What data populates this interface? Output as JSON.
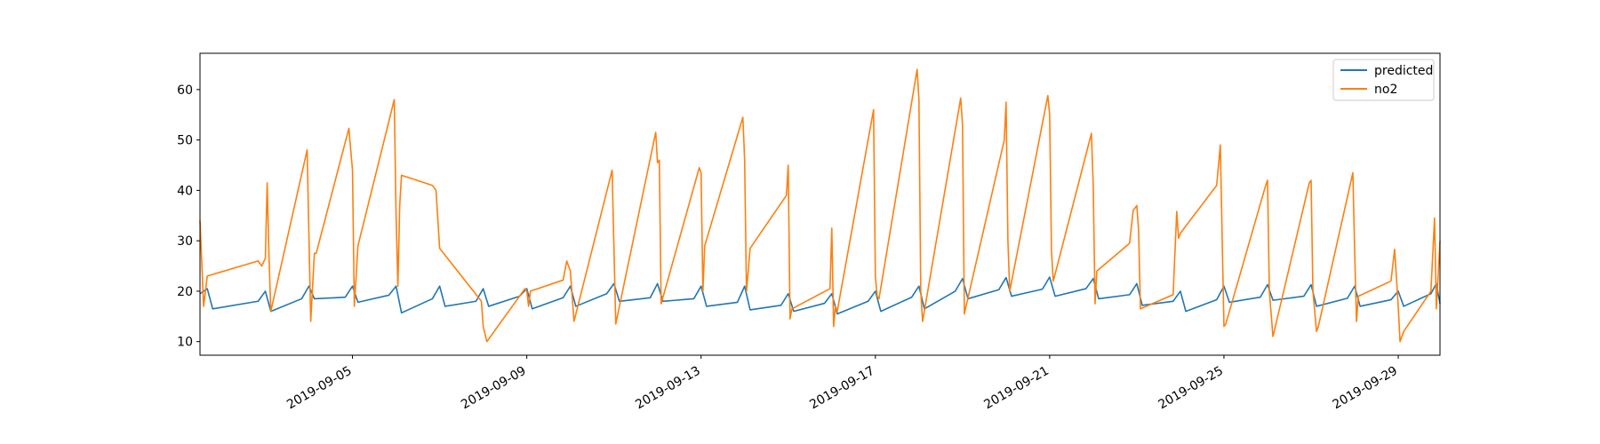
{
  "chart_data": {
    "type": "line",
    "title": "",
    "xlabel": "",
    "ylabel": "",
    "xlim": [
      "2019-09-01T12:00",
      "2019-09-29T23:00"
    ],
    "ylim": [
      7.3,
      67.2
    ],
    "legend_position": "top-right",
    "grid": false,
    "x_ticks": [
      "2019-09-05",
      "2019-09-09",
      "2019-09-13",
      "2019-09-17",
      "2019-09-21",
      "2019-09-25",
      "2019-09-29"
    ],
    "y_ticks": [
      10,
      20,
      30,
      40,
      50,
      60
    ],
    "series": [
      {
        "name": "predicted",
        "color": "#1f77b4",
        "points": [
          [
            "2019-09-01T12:00",
            19.5
          ],
          [
            "2019-09-01T16:00",
            20.5
          ],
          [
            "2019-09-01T19:00",
            16.5
          ],
          [
            "2019-09-02T20:00",
            18.0
          ],
          [
            "2019-09-03T00:00",
            20.0
          ],
          [
            "2019-09-03T03:00",
            16.0
          ],
          [
            "2019-09-03T20:00",
            18.5
          ],
          [
            "2019-09-04T00:00",
            21.0
          ],
          [
            "2019-09-04T03:00",
            18.5
          ],
          [
            "2019-09-04T20:00",
            18.8
          ],
          [
            "2019-09-05T00:00",
            21.0
          ],
          [
            "2019-09-05T03:00",
            17.8
          ],
          [
            "2019-09-05T20:00",
            19.2
          ],
          [
            "2019-09-06T00:00",
            21.0
          ],
          [
            "2019-09-06T03:00",
            15.7
          ],
          [
            "2019-09-06T20:00",
            18.5
          ],
          [
            "2019-09-07T00:00",
            21.0
          ],
          [
            "2019-09-07T03:00",
            17.0
          ],
          [
            "2019-09-07T20:00",
            18.0
          ],
          [
            "2019-09-08T00:00",
            20.5
          ],
          [
            "2019-09-08T03:00",
            17.0
          ],
          [
            "2019-09-08T20:00",
            19.0
          ],
          [
            "2019-09-09T00:00",
            20.5
          ],
          [
            "2019-09-09T03:00",
            16.5
          ],
          [
            "2019-09-09T20:00",
            18.7
          ],
          [
            "2019-09-10T00:00",
            21.0
          ],
          [
            "2019-09-10T03:00",
            17.0
          ],
          [
            "2019-09-10T20:00",
            19.5
          ],
          [
            "2019-09-11T00:00",
            21.5
          ],
          [
            "2019-09-11T03:00",
            18.0
          ],
          [
            "2019-09-11T20:00",
            18.7
          ],
          [
            "2019-09-12T00:00",
            21.5
          ],
          [
            "2019-09-12T03:00",
            18.0
          ],
          [
            "2019-09-12T20:00",
            18.5
          ],
          [
            "2019-09-13T00:00",
            21.0
          ],
          [
            "2019-09-13T03:00",
            17.0
          ],
          [
            "2019-09-13T20:00",
            17.8
          ],
          [
            "2019-09-14T00:00",
            21.0
          ],
          [
            "2019-09-14T03:00",
            16.3
          ],
          [
            "2019-09-14T20:00",
            17.2
          ],
          [
            "2019-09-15T00:00",
            19.5
          ],
          [
            "2019-09-15T03:00",
            16.0
          ],
          [
            "2019-09-15T20:00",
            17.6
          ],
          [
            "2019-09-16T00:00",
            19.5
          ],
          [
            "2019-09-16T03:00",
            15.5
          ],
          [
            "2019-09-16T20:00",
            18.0
          ],
          [
            "2019-09-17T00:00",
            20.0
          ],
          [
            "2019-09-17T03:00",
            16.0
          ],
          [
            "2019-09-17T20:00",
            18.8
          ],
          [
            "2019-09-18T00:00",
            21.0
          ],
          [
            "2019-09-18T03:00",
            16.5
          ],
          [
            "2019-09-18T20:00",
            20.0
          ],
          [
            "2019-09-19T00:00",
            22.5
          ],
          [
            "2019-09-19T03:00",
            18.5
          ],
          [
            "2019-09-19T20:00",
            20.3
          ],
          [
            "2019-09-20T00:00",
            22.7
          ],
          [
            "2019-09-20T03:00",
            19.0
          ],
          [
            "2019-09-20T20:00",
            20.4
          ],
          [
            "2019-09-21T00:00",
            22.8
          ],
          [
            "2019-09-21T03:00",
            19.0
          ],
          [
            "2019-09-21T20:00",
            20.5
          ],
          [
            "2019-09-22T00:00",
            22.5
          ],
          [
            "2019-09-22T03:00",
            18.5
          ],
          [
            "2019-09-22T20:00",
            19.3
          ],
          [
            "2019-09-23T00:00",
            21.5
          ],
          [
            "2019-09-23T03:00",
            17.2
          ],
          [
            "2019-09-23T20:00",
            18.0
          ],
          [
            "2019-09-24T00:00",
            20.0
          ],
          [
            "2019-09-24T03:00",
            16.0
          ],
          [
            "2019-09-24T20:00",
            18.3
          ],
          [
            "2019-09-25T00:00",
            21.0
          ],
          [
            "2019-09-25T03:00",
            17.8
          ],
          [
            "2019-09-25T20:00",
            18.8
          ],
          [
            "2019-09-26T00:00",
            21.3
          ],
          [
            "2019-09-26T03:00",
            18.2
          ],
          [
            "2019-09-26T20:00",
            19.0
          ],
          [
            "2019-09-27T00:00",
            21.3
          ],
          [
            "2019-09-27T03:00",
            17.0
          ],
          [
            "2019-09-27T20:00",
            18.6
          ],
          [
            "2019-09-28T00:00",
            21.0
          ],
          [
            "2019-09-28T03:00",
            17.0
          ],
          [
            "2019-09-28T20:00",
            18.3
          ],
          [
            "2019-09-29T00:00",
            20.0
          ],
          [
            "2019-09-29T03:00",
            17.0
          ],
          [
            "2019-09-29T18:00",
            19.5
          ],
          [
            "2019-09-29T21:00",
            21.5
          ],
          [
            "2019-09-29T23:00",
            17.5
          ]
        ]
      },
      {
        "name": "no2",
        "color": "#ff7f0e",
        "points": [
          [
            "2019-09-01T12:00",
            34.0
          ],
          [
            "2019-09-01T14:00",
            17.0
          ],
          [
            "2019-09-01T16:00",
            23.0
          ],
          [
            "2019-09-02T20:00",
            26.0
          ],
          [
            "2019-09-02T22:00",
            25.0
          ],
          [
            "2019-09-03T00:00",
            26.5
          ],
          [
            "2019-09-03T01:00",
            41.5
          ],
          [
            "2019-09-03T02:00",
            27.0
          ],
          [
            "2019-09-03T03:00",
            16.0
          ],
          [
            "2019-09-03T23:00",
            48.0
          ],
          [
            "2019-09-04T01:00",
            14.0
          ],
          [
            "2019-09-04T03:00",
            27.5
          ],
          [
            "2019-09-04T04:00",
            27.5
          ],
          [
            "2019-09-04T22:00",
            52.3
          ],
          [
            "2019-09-05T00:00",
            44.0
          ],
          [
            "2019-09-05T01:00",
            17.0
          ],
          [
            "2019-09-05T03:00",
            29.0
          ],
          [
            "2019-09-05T23:00",
            58.0
          ],
          [
            "2019-09-06T00:00",
            35.0
          ],
          [
            "2019-09-06T01:00",
            21.0
          ],
          [
            "2019-09-06T02:00",
            37.0
          ],
          [
            "2019-09-06T03:00",
            43.0
          ],
          [
            "2019-09-06T20:00",
            41.0
          ],
          [
            "2019-09-06T22:00",
            40.0
          ],
          [
            "2019-09-07T00:00",
            28.5
          ],
          [
            "2019-09-07T23:00",
            18.0
          ],
          [
            "2019-09-08T00:00",
            13.0
          ],
          [
            "2019-09-08T02:00",
            10.0
          ],
          [
            "2019-09-08T23:00",
            20.5
          ],
          [
            "2019-09-09T00:00",
            20.0
          ],
          [
            "2019-09-09T01:00",
            17.0
          ],
          [
            "2019-09-09T02:00",
            20.0
          ],
          [
            "2019-09-09T20:00",
            22.2
          ],
          [
            "2019-09-09T22:00",
            26.0
          ],
          [
            "2019-09-10T00:00",
            24.0
          ],
          [
            "2019-09-10T02:00",
            14.0
          ],
          [
            "2019-09-10T23:00",
            44.0
          ],
          [
            "2019-09-11T01:00",
            13.5
          ],
          [
            "2019-09-11T23:00",
            51.5
          ],
          [
            "2019-09-12T00:00",
            45.5
          ],
          [
            "2019-09-12T01:00",
            46.0
          ],
          [
            "2019-09-12T02:00",
            17.5
          ],
          [
            "2019-09-12T23:00",
            44.5
          ],
          [
            "2019-09-13T00:00",
            43.5
          ],
          [
            "2019-09-13T01:00",
            20.0
          ],
          [
            "2019-09-13T02:00",
            29.0
          ],
          [
            "2019-09-13T23:00",
            54.5
          ],
          [
            "2019-09-14T00:00",
            46.0
          ],
          [
            "2019-09-14T01:00",
            20.0
          ],
          [
            "2019-09-14T03:00",
            28.5
          ],
          [
            "2019-09-14T23:00",
            39.0
          ],
          [
            "2019-09-15T00:00",
            45.0
          ],
          [
            "2019-09-15T01:00",
            14.5
          ],
          [
            "2019-09-15T02:00",
            16.5
          ],
          [
            "2019-09-15T23:00",
            20.5
          ],
          [
            "2019-09-16T00:00",
            32.5
          ],
          [
            "2019-09-16T01:00",
            13.0
          ],
          [
            "2019-09-16T02:00",
            17.0
          ],
          [
            "2019-09-16T03:00",
            16.0
          ],
          [
            "2019-09-16T23:00",
            56.0
          ],
          [
            "2019-09-17T00:00",
            23.0
          ],
          [
            "2019-09-17T01:00",
            19.0
          ],
          [
            "2019-09-17T02:00",
            18.5
          ],
          [
            "2019-09-17T23:00",
            64.0
          ],
          [
            "2019-09-18T00:00",
            58.0
          ],
          [
            "2019-09-18T01:00",
            20.0
          ],
          [
            "2019-09-18T02:00",
            14.0
          ],
          [
            "2019-09-18T23:00",
            58.3
          ],
          [
            "2019-09-19T00:00",
            53.0
          ],
          [
            "2019-09-19T01:00",
            15.5
          ],
          [
            "2019-09-19T23:00",
            50.0
          ],
          [
            "2019-09-20T00:00",
            57.5
          ],
          [
            "2019-09-20T01:00",
            30.0
          ],
          [
            "2019-09-20T02:00",
            20.0
          ],
          [
            "2019-09-20T23:00",
            58.8
          ],
          [
            "2019-09-21T00:00",
            55.0
          ],
          [
            "2019-09-21T01:00",
            28.0
          ],
          [
            "2019-09-21T02:00",
            22.0
          ],
          [
            "2019-09-21T23:00",
            51.3
          ],
          [
            "2019-09-22T00:00",
            41.0
          ],
          [
            "2019-09-22T01:00",
            17.5
          ],
          [
            "2019-09-22T02:00",
            24.0
          ],
          [
            "2019-09-22T20:00",
            29.5
          ],
          [
            "2019-09-22T22:00",
            36.0
          ],
          [
            "2019-09-23T00:00",
            37.0
          ],
          [
            "2019-09-23T01:00",
            32.0
          ],
          [
            "2019-09-23T02:00",
            16.5
          ],
          [
            "2019-09-23T20:00",
            19.3
          ],
          [
            "2019-09-23T22:00",
            35.8
          ],
          [
            "2019-09-23T23:00",
            30.5
          ],
          [
            "2019-09-24T00:00",
            31.5
          ],
          [
            "2019-09-24T20:00",
            41.0
          ],
          [
            "2019-09-24T22:00",
            49.0
          ],
          [
            "2019-09-25T00:00",
            13.0
          ],
          [
            "2019-09-25T01:00",
            13.5
          ],
          [
            "2019-09-25T23:00",
            41.0
          ],
          [
            "2019-09-26T00:00",
            42.0
          ],
          [
            "2019-09-26T01:00",
            20.0
          ],
          [
            "2019-09-26T03:00",
            11.0
          ],
          [
            "2019-09-26T23:00",
            41.5
          ],
          [
            "2019-09-27T00:00",
            42.0
          ],
          [
            "2019-09-27T01:00",
            20.0
          ],
          [
            "2019-09-27T03:00",
            12.0
          ],
          [
            "2019-09-27T04:00",
            13.0
          ],
          [
            "2019-09-27T23:00",
            43.5
          ],
          [
            "2019-09-28T00:00",
            28.0
          ],
          [
            "2019-09-28T01:00",
            14.0
          ],
          [
            "2019-09-28T02:00",
            19.0
          ],
          [
            "2019-09-28T20:00",
            22.0
          ],
          [
            "2019-09-28T22:00",
            28.3
          ],
          [
            "2019-09-29T00:00",
            17.0
          ],
          [
            "2019-09-29T01:00",
            10.0
          ],
          [
            "2019-09-29T03:00",
            12.0
          ],
          [
            "2019-09-29T18:00",
            20.0
          ],
          [
            "2019-09-29T20:00",
            34.5
          ],
          [
            "2019-09-29T21:00",
            16.5
          ],
          [
            "2019-09-29T23:00",
            30.0
          ]
        ]
      }
    ]
  }
}
